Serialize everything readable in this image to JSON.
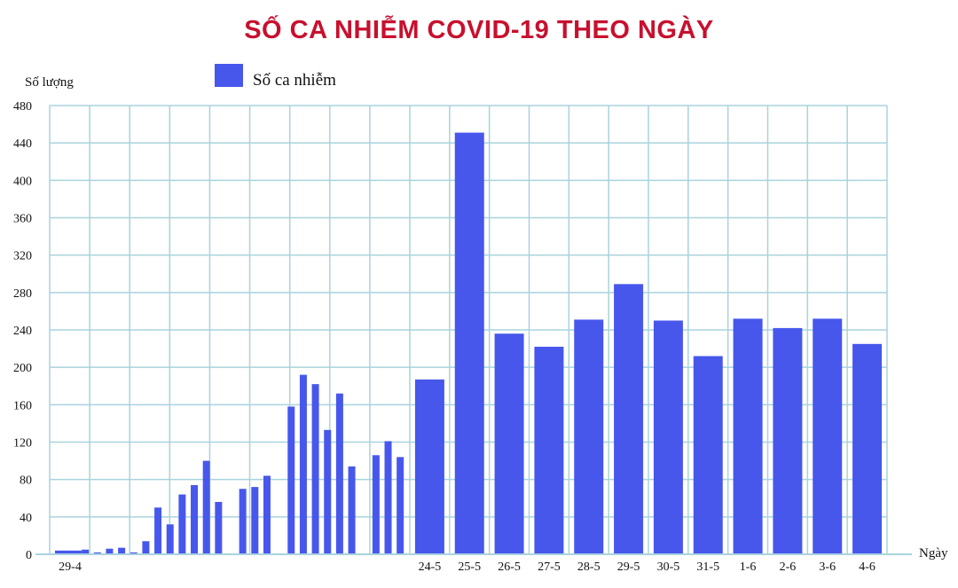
{
  "chart_data": {
    "type": "bar",
    "title": "SỐ CA NHIỄM COVID-19 THEO NGÀY",
    "ylabel": "Số lượng",
    "xlabel": "Ngày",
    "ylim": [
      0,
      480
    ],
    "yticks": [
      0,
      40,
      80,
      120,
      160,
      200,
      240,
      280,
      320,
      360,
      400,
      440,
      480
    ],
    "grid": true,
    "legend": "top-left",
    "series_name": "Số ca nhiễm",
    "color": "#4757ec",
    "grid_color": "#a9d3dd",
    "title_color": "#c8102e",
    "small_bars": [
      {
        "label": "29-4",
        "value": 4
      },
      {
        "label": "",
        "value": 0
      },
      {
        "label": "",
        "value": 5
      },
      {
        "label": "",
        "value": 2
      },
      {
        "label": "",
        "value": 6
      },
      {
        "label": "",
        "value": 7
      },
      {
        "label": "",
        "value": 2
      },
      {
        "label": "",
        "value": 14
      },
      {
        "label": "",
        "value": 50
      },
      {
        "label": "",
        "value": 32
      },
      {
        "label": "",
        "value": 64
      },
      {
        "label": "",
        "value": 74
      },
      {
        "label": "",
        "value": 100
      },
      {
        "label": "",
        "value": 56
      },
      {
        "label": "",
        "value": 0
      },
      {
        "label": "",
        "value": 70
      },
      {
        "label": "",
        "value": 72
      },
      {
        "label": "",
        "value": 84
      },
      {
        "label": "",
        "value": 0
      },
      {
        "label": "",
        "value": 158
      },
      {
        "label": "",
        "value": 192
      },
      {
        "label": "",
        "value": 182
      },
      {
        "label": "",
        "value": 133
      },
      {
        "label": "",
        "value": 172
      },
      {
        "label": "",
        "value": 94
      },
      {
        "label": "",
        "value": 0
      },
      {
        "label": "",
        "value": 106
      },
      {
        "label": "",
        "value": 121
      },
      {
        "label": "",
        "value": 104
      }
    ],
    "big_bars": [
      {
        "label": "24-5",
        "value": 187
      },
      {
        "label": "25-5",
        "value": 451
      },
      {
        "label": "26-5",
        "value": 236
      },
      {
        "label": "27-5",
        "value": 222
      },
      {
        "label": "28-5",
        "value": 251
      },
      {
        "label": "29-5",
        "value": 289
      },
      {
        "label": "30-5",
        "value": 250
      },
      {
        "label": "31-5",
        "value": 212
      },
      {
        "label": "1-6",
        "value": 252
      },
      {
        "label": "2-6",
        "value": 242
      },
      {
        "label": "3-6",
        "value": 252
      },
      {
        "label": "4-6",
        "value": 225
      }
    ]
  }
}
